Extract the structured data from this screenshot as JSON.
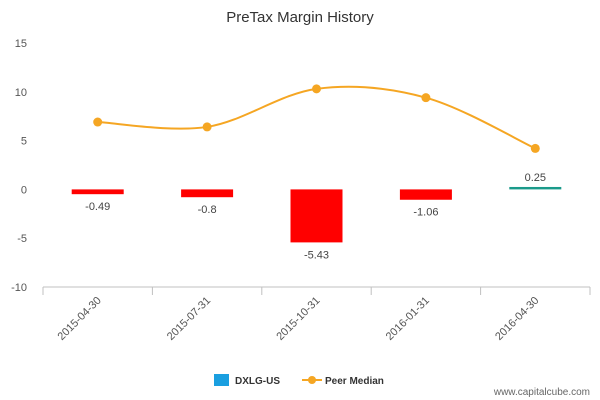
{
  "chart_data": {
    "type": "bar",
    "title": "PreTax Margin History",
    "categories": [
      "2015-04-30",
      "2015-07-31",
      "2015-10-31",
      "2016-01-31",
      "2016-04-30"
    ],
    "series": [
      {
        "name": "DXLG-US",
        "type": "bar",
        "values": [
          -0.49,
          -0.8,
          -5.43,
          -1.06,
          0.25
        ],
        "labels": [
          "-0.49",
          "-0.8",
          "-5.43",
          "-1.06",
          "0.25"
        ],
        "legend_color": "#1a9fe0",
        "negative_color": "#ff0000",
        "positive_color": "#1a9a8a"
      },
      {
        "name": "Peer Median",
        "type": "line",
        "values": [
          6.9,
          6.4,
          10.3,
          9.4,
          4.2
        ],
        "color": "#f5a623"
      }
    ],
    "ylim": [
      -10,
      15
    ],
    "yticks": [
      -10,
      -5,
      0,
      5,
      10,
      15
    ],
    "ytick_labels": [
      "-10",
      "-5",
      "0",
      "5",
      "10",
      "15"
    ],
    "xlabel": "",
    "ylabel": "",
    "grid": false,
    "legend_position": "bottom-center"
  },
  "footer": {
    "source": "www.capitalcube.com"
  }
}
